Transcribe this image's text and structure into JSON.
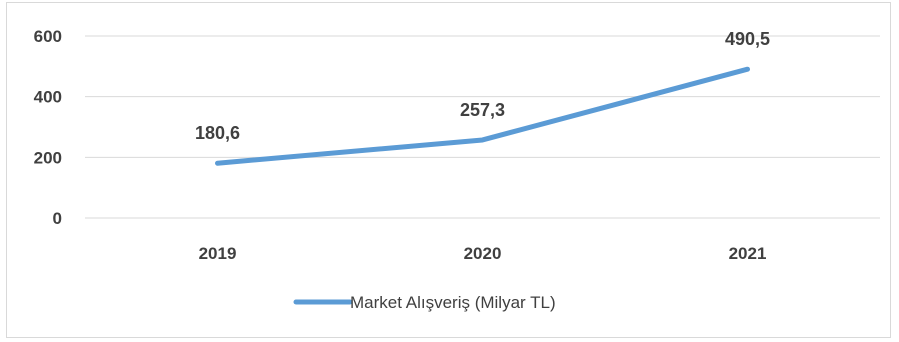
{
  "chart_data": {
    "type": "line",
    "categories": [
      "2019",
      "2020",
      "2021"
    ],
    "series": [
      {
        "name": "Market Alışveriş (Milyar TL)",
        "values": [
          180.6,
          257.3,
          490.5
        ],
        "labels": [
          "180,6",
          "257,3",
          "490,5"
        ]
      }
    ],
    "ylim": [
      0,
      600
    ],
    "yticks": [
      0,
      200,
      400,
      600
    ],
    "ytick_labels": [
      "0",
      "200",
      "400",
      "600"
    ],
    "grid": true,
    "legend_position": "bottom",
    "colors": {
      "series": "#5b9bd5",
      "grid": "#d9d9d9",
      "text": "#404040"
    }
  }
}
